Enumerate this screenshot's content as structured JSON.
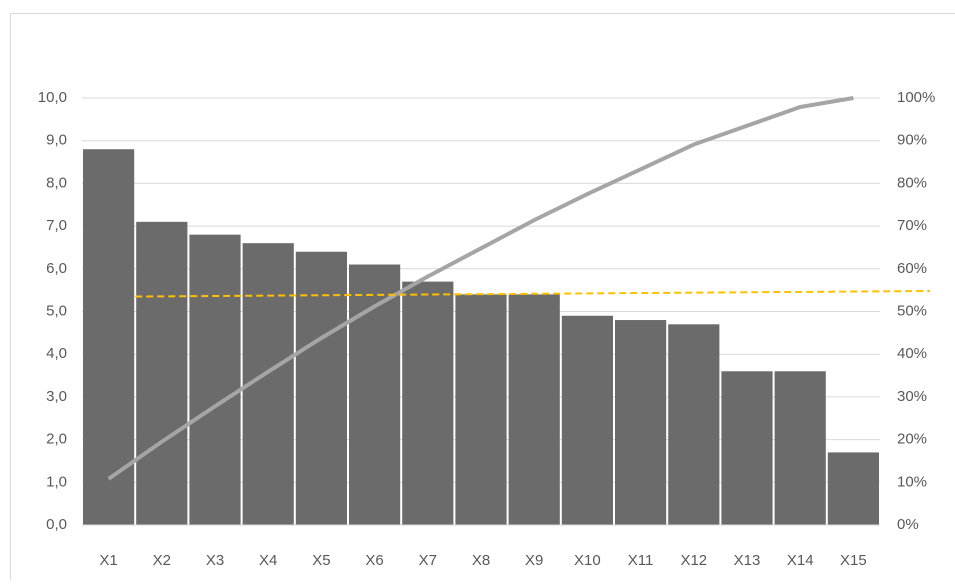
{
  "chart_data": {
    "type": "pareto",
    "categories": [
      "X1",
      "X2",
      "X3",
      "X4",
      "X5",
      "X6",
      "X7",
      "X8",
      "X9",
      "X10",
      "X11",
      "X12",
      "X13",
      "X14",
      "X15"
    ],
    "series": [
      {
        "type": "bar",
        "color": "#6b6b6b",
        "values": [
          8.8,
          7.1,
          6.8,
          6.6,
          6.4,
          6.1,
          5.7,
          5.4,
          5.4,
          4.9,
          4.8,
          4.7,
          3.6,
          3.6,
          1.7
        ]
      },
      {
        "type": "line",
        "axis": "y2",
        "color": "#a5a5a5",
        "values": [
          10.8,
          19.5,
          27.8,
          35.9,
          43.8,
          51.2,
          58.2,
          64.8,
          71.4,
          77.5,
          83.3,
          89.1,
          93.5,
          97.9,
          100
        ]
      }
    ],
    "reference_line": {
      "color": "#ffc000",
      "values": [
        5.35,
        5.48
      ]
    },
    "ylim": [
      0,
      10
    ],
    "yticks": [
      {
        "value": 0,
        "label": "0,0"
      },
      {
        "value": 1,
        "label": "1,0"
      },
      {
        "value": 2,
        "label": "2,0"
      },
      {
        "value": 3,
        "label": "3,0"
      },
      {
        "value": 4,
        "label": "4,0"
      },
      {
        "value": 5,
        "label": "5,0"
      },
      {
        "value": 6,
        "label": "6,0"
      },
      {
        "value": 7,
        "label": "7,0"
      },
      {
        "value": 8,
        "label": "8,0"
      },
      {
        "value": 9,
        "label": "9,0"
      },
      {
        "value": 10,
        "label": "10,0"
      }
    ],
    "y2lim": [
      0,
      100
    ],
    "y2ticks": [
      {
        "value": 0,
        "label": "0%"
      },
      {
        "value": 10,
        "label": "10%"
      },
      {
        "value": 20,
        "label": "20%"
      },
      {
        "value": 30,
        "label": "30%"
      },
      {
        "value": 40,
        "label": "40%"
      },
      {
        "value": 50,
        "label": "50%"
      },
      {
        "value": 60,
        "label": "60%"
      },
      {
        "value": 70,
        "label": "70%"
      },
      {
        "value": 80,
        "label": "80%"
      },
      {
        "value": 90,
        "label": "90%"
      },
      {
        "value": 100,
        "label": "100%"
      }
    ],
    "grid": true
  }
}
